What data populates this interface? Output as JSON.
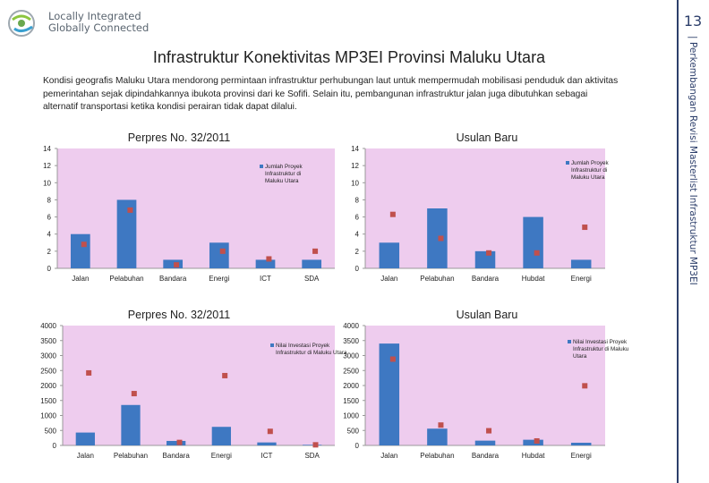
{
  "header": {
    "logo_line1": "Locally Integrated",
    "logo_line2": "Globally Connected"
  },
  "sidebar": {
    "page_number": "13",
    "vertical_text": "Perkembangan Revisi Masterlist Infrastruktur MP3EI"
  },
  "page_title": "Infrastruktur Konektivitas MP3EI Provinsi Maluku Utara",
  "intro_text": "Kondisi geografis Maluku Utara mendorong permintaan infrastruktur  perhubungan laut untuk mempermudah mobilisasi penduduk dan aktivitas pemerintahan sejak dipindahkannya ibukota provinsi dari ke Sofifi. Selain itu, pembangunan infrastruktur jalan juga dibutuhkan sebagai alternatif transportasi ketika kondisi perairan tidak dapat dilalui.",
  "colors": {
    "plot_bg": "#eeccee",
    "bar": "#3e78c2",
    "marker": "#c0504d",
    "axis": "#999999",
    "title": "#222222"
  },
  "chart_data": [
    {
      "type": "bar",
      "title": "Perpres No. 32/2011",
      "categories": [
        "Jalan",
        "Pelabuhan",
        "Bandara",
        "Energi",
        "ICT",
        "SDA"
      ],
      "series": [
        {
          "name": "Jumlah Proyek Infrastruktur di Maluku Utara",
          "values": [
            4,
            8,
            1,
            3,
            1,
            1
          ]
        }
      ],
      "markers": [
        2.8,
        6.8,
        0.4,
        2.0,
        1.1,
        2.0
      ],
      "ylim": [
        0,
        14
      ],
      "yticks": [
        0,
        2,
        4,
        6,
        8,
        10,
        12,
        14
      ],
      "legend_position": "top-right"
    },
    {
      "type": "bar",
      "title": "Usulan Baru",
      "categories": [
        "Jalan",
        "Pelabuhan",
        "Bandara",
        "Hubdat",
        "Energi"
      ],
      "series": [
        {
          "name": "Jumlah Proyek Infrastruktur di Maluku Utara",
          "values": [
            3,
            7,
            2,
            6,
            1
          ]
        }
      ],
      "markers": [
        6.3,
        3.5,
        1.8,
        1.8,
        4.8
      ],
      "ylim": [
        0,
        14
      ],
      "yticks": [
        0,
        2,
        4,
        6,
        8,
        10,
        12,
        14
      ],
      "legend_position": "top-right"
    },
    {
      "type": "bar",
      "title": "Perpres No. 32/2011",
      "categories": [
        "Jalan",
        "Pelabuhan",
        "Bandara",
        "Energi",
        "ICT",
        "SDA"
      ],
      "series": [
        {
          "name": "Nilai Investasi Proyek Infrastruktur di Maluku Utara",
          "values": [
            430,
            1350,
            150,
            620,
            100,
            20
          ]
        }
      ],
      "markers": [
        2420,
        1730,
        100,
        2330,
        470,
        20
      ],
      "ylim": [
        0,
        4000
      ],
      "yticks": [
        0,
        500,
        1000,
        1500,
        2000,
        2500,
        3000,
        3500,
        4000
      ],
      "legend_position": "top-right"
    },
    {
      "type": "bar",
      "title": "Usulan Baru",
      "categories": [
        "Jalan",
        "Pelabuhan",
        "Bandara",
        "Hubdat",
        "Energi"
      ],
      "series": [
        {
          "name": "Nilai Investasi Proyek Infrastruktur di Maluku Utara",
          "values": [
            3400,
            560,
            160,
            190,
            90
          ]
        }
      ],
      "markers": [
        2880,
        680,
        490,
        150,
        1990
      ],
      "ylim": [
        0,
        4000
      ],
      "yticks": [
        0,
        500,
        1000,
        1500,
        2000,
        2500,
        3000,
        3500,
        4000
      ],
      "legend_position": "top-right"
    }
  ]
}
